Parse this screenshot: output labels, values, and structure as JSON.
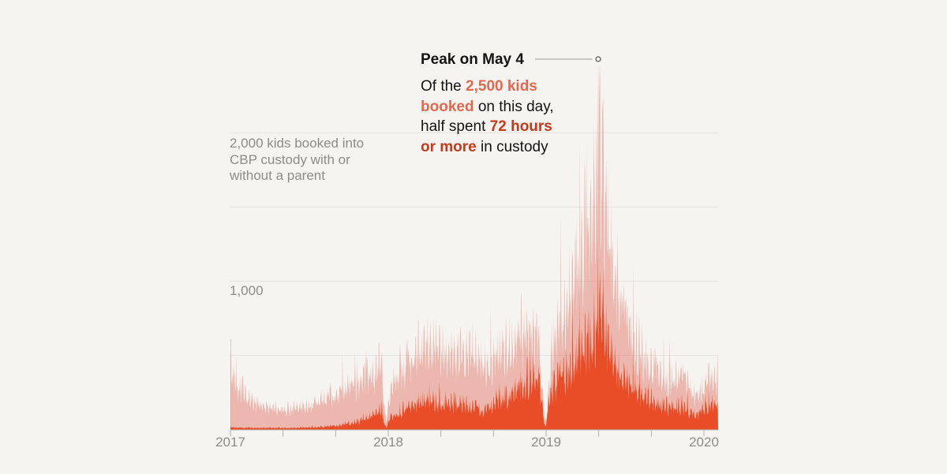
{
  "page": {
    "background": "#f5f4f0"
  },
  "annotation": {
    "title": "Peak on May 4",
    "lines": [
      [
        {
          "text": "Of the ",
          "style": "k"
        },
        {
          "text": "2,500 kids",
          "style": "s"
        }
      ],
      [
        {
          "text": "booked",
          "style": "s"
        },
        {
          "text": " on this day,",
          "style": "k"
        }
      ],
      [
        {
          "text": "half spent ",
          "style": "k"
        },
        {
          "text": "72 hours",
          "style": "r"
        }
      ],
      [
        {
          "text": "or more",
          "style": "r"
        },
        {
          "text": " in custody",
          "style": "k"
        }
      ]
    ],
    "leader_color": "#9b9992",
    "marker_stroke": "#55534f"
  },
  "chart_data": {
    "type": "area",
    "y_axis_note": "2,000 kids booked into CBP custody with or without a parent",
    "y_tick_1000_label": "1,000",
    "ylim": [
      0,
      2500
    ],
    "gridline_values": [
      500,
      1000,
      1500,
      2000
    ],
    "grid_color": "#e7e5e1",
    "axis_color": "#b3b1ac",
    "edge_line_color": "#cfcdc8",
    "x_start": 2017.0,
    "x_end": 2020.09,
    "x_major_ticks": [
      {
        "label": "2017",
        "t": 2017
      },
      {
        "label": "2018",
        "t": 2018
      },
      {
        "label": "2019",
        "t": 2019
      },
      {
        "label": "2020",
        "t": 2020
      }
    ],
    "x_minor_ticks_t": [
      2017.333,
      2017.667,
      2018.333,
      2018.667,
      2019.333,
      2019.667
    ],
    "peak": {
      "label": "Peak on May 4",
      "t": 2019.33,
      "booked_value": 2450,
      "half_in_custody_value": 1270
    },
    "series": [
      {
        "name": "kids booked into CBP custody",
        "fill": "#e17a6b",
        "fill_opacity": 0.5,
        "seed": 42,
        "noise": {
          "weekly_amp": 0.17,
          "jitter_base": 0.66,
          "jitter_span": 0.5,
          "spike_prob": 0.045,
          "spike_mult": 1.38
        },
        "envelope": [
          [
            2017.0,
            440
          ],
          [
            2017.04,
            330
          ],
          [
            2017.12,
            215
          ],
          [
            2017.25,
            150
          ],
          [
            2017.4,
            150
          ],
          [
            2017.52,
            180
          ],
          [
            2017.65,
            250
          ],
          [
            2017.78,
            310
          ],
          [
            2017.88,
            380
          ],
          [
            2017.955,
            470
          ],
          [
            2017.975,
            150
          ],
          [
            2017.99,
            60
          ],
          [
            2018.005,
            250
          ],
          [
            2018.04,
            400
          ],
          [
            2018.1,
            450
          ],
          [
            2018.18,
            570
          ],
          [
            2018.3,
            580
          ],
          [
            2018.42,
            510
          ],
          [
            2018.53,
            560
          ],
          [
            2018.62,
            450
          ],
          [
            2018.72,
            560
          ],
          [
            2018.82,
            650
          ],
          [
            2018.93,
            730
          ],
          [
            2018.955,
            600
          ],
          [
            2018.99,
            80
          ],
          [
            2019.0,
            60
          ],
          [
            2019.01,
            200
          ],
          [
            2019.04,
            620
          ],
          [
            2019.08,
            780
          ],
          [
            2019.13,
            900
          ],
          [
            2019.18,
            1050
          ],
          [
            2019.23,
            1300
          ],
          [
            2019.28,
            1450
          ],
          [
            2019.315,
            1700
          ],
          [
            2019.34,
            1850
          ],
          [
            2019.37,
            1650
          ],
          [
            2019.41,
            1350
          ],
          [
            2019.45,
            1100
          ],
          [
            2019.5,
            880
          ],
          [
            2019.56,
            650
          ],
          [
            2019.62,
            520
          ],
          [
            2019.68,
            430
          ],
          [
            2019.74,
            350
          ],
          [
            2019.8,
            390
          ],
          [
            2019.86,
            400
          ],
          [
            2019.91,
            300
          ],
          [
            2019.95,
            230
          ],
          [
            2020.0,
            320
          ],
          [
            2020.05,
            360
          ],
          [
            2020.09,
            400
          ]
        ],
        "forced_spikes": [
          [
            2019.215,
            1950
          ],
          [
            2019.245,
            1800
          ],
          [
            2019.285,
            1600
          ],
          [
            2019.33,
            2450
          ],
          [
            2019.363,
            2250
          ],
          [
            2019.393,
            1780
          ]
        ]
      },
      {
        "name": "of whom spent 72 hours or more in custody",
        "fill": "#e84d28",
        "fill_opacity": 1,
        "seed": 1337,
        "noise": {
          "weekly_amp": 0.2,
          "jitter_base": 0.62,
          "jitter_span": 0.55,
          "spike_prob": 0.05,
          "spike_mult": 1.5
        },
        "envelope": [
          [
            2017.0,
            16
          ],
          [
            2017.15,
            11
          ],
          [
            2017.35,
            11
          ],
          [
            2017.55,
            16
          ],
          [
            2017.68,
            28
          ],
          [
            2017.8,
            55
          ],
          [
            2017.9,
            100
          ],
          [
            2017.955,
            140
          ],
          [
            2017.975,
            40
          ],
          [
            2017.99,
            12
          ],
          [
            2018.005,
            70
          ],
          [
            2018.06,
            120
          ],
          [
            2018.14,
            170
          ],
          [
            2018.22,
            200
          ],
          [
            2018.32,
            215
          ],
          [
            2018.42,
            195
          ],
          [
            2018.52,
            185
          ],
          [
            2018.6,
            140
          ],
          [
            2018.7,
            200
          ],
          [
            2018.8,
            280
          ],
          [
            2018.9,
            390
          ],
          [
            2018.95,
            420
          ],
          [
            2018.99,
            40
          ],
          [
            2019.0,
            25
          ],
          [
            2019.02,
            250
          ],
          [
            2019.06,
            370
          ],
          [
            2019.12,
            430
          ],
          [
            2019.18,
            480
          ],
          [
            2019.24,
            560
          ],
          [
            2019.29,
            650
          ],
          [
            2019.32,
            780
          ],
          [
            2019.345,
            870
          ],
          [
            2019.38,
            700
          ],
          [
            2019.43,
            520
          ],
          [
            2019.5,
            370
          ],
          [
            2019.58,
            270
          ],
          [
            2019.66,
            210
          ],
          [
            2019.74,
            180
          ],
          [
            2019.82,
            170
          ],
          [
            2019.9,
            140
          ],
          [
            2019.95,
            105
          ],
          [
            2020.0,
            155
          ],
          [
            2020.05,
            175
          ],
          [
            2020.09,
            190
          ]
        ],
        "forced_spikes": [
          [
            2019.215,
            860
          ],
          [
            2019.25,
            790
          ],
          [
            2019.33,
            1270
          ],
          [
            2019.362,
            1130
          ],
          [
            2019.392,
            690
          ]
        ]
      }
    ]
  }
}
